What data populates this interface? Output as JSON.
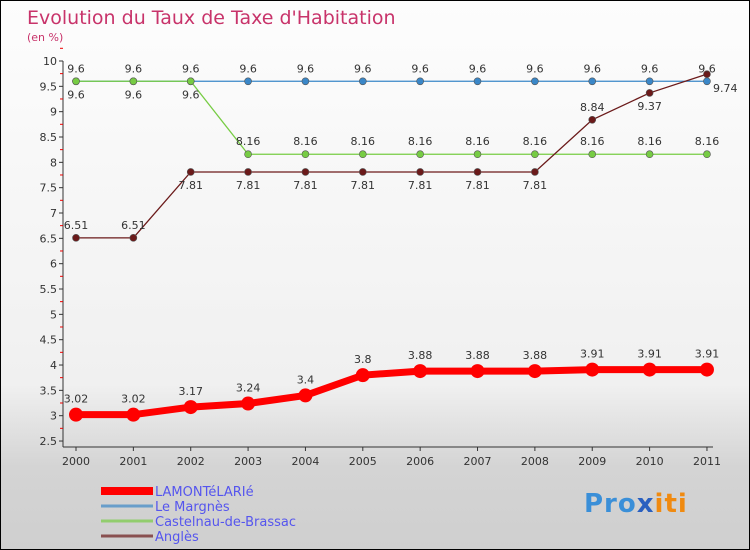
{
  "chart_data": {
    "type": "line",
    "title": "Evolution du Taux de Taxe d'Habitation",
    "subtitle": "(en %)",
    "x": [
      "2000",
      "2001",
      "2002",
      "2003",
      "2004",
      "2005",
      "2006",
      "2007",
      "2008",
      "2009",
      "2010",
      "2011"
    ],
    "ylim": [
      2.5,
      10
    ],
    "yticks": [
      "2.5",
      "3",
      "3.5",
      "4",
      "4.5",
      "5",
      "5.5",
      "6",
      "6.5",
      "7",
      "7.5",
      "8",
      "8.5",
      "9",
      "9.5",
      "10"
    ],
    "series": [
      {
        "name": "LAMONTéLARIé",
        "color": "#ff0000",
        "values": [
          3.02,
          3.02,
          3.17,
          3.24,
          3.4,
          3.8,
          3.88,
          3.88,
          3.88,
          3.91,
          3.91,
          3.91
        ]
      },
      {
        "name": "Le Margnès",
        "color": "#3a87c8",
        "values": [
          9.6,
          9.6,
          9.6,
          9.6,
          9.6,
          9.6,
          9.6,
          9.6,
          9.6,
          9.6,
          9.6,
          9.6
        ]
      },
      {
        "name": "Castelnau-de-Brassac",
        "color": "#77cc44",
        "values": [
          9.6,
          9.6,
          9.6,
          8.16,
          8.16,
          8.16,
          8.16,
          8.16,
          8.16,
          8.16,
          8.16,
          8.16
        ]
      },
      {
        "name": "Anglès",
        "color": "#6b1a1a",
        "values": [
          6.51,
          6.51,
          7.81,
          7.81,
          7.81,
          7.81,
          7.81,
          7.81,
          7.81,
          8.84,
          9.37,
          9.74
        ]
      }
    ],
    "legend_position": "bottom-left"
  },
  "logo": {
    "p1": "Pro",
    "p2": "x",
    "p3": "iti"
  }
}
